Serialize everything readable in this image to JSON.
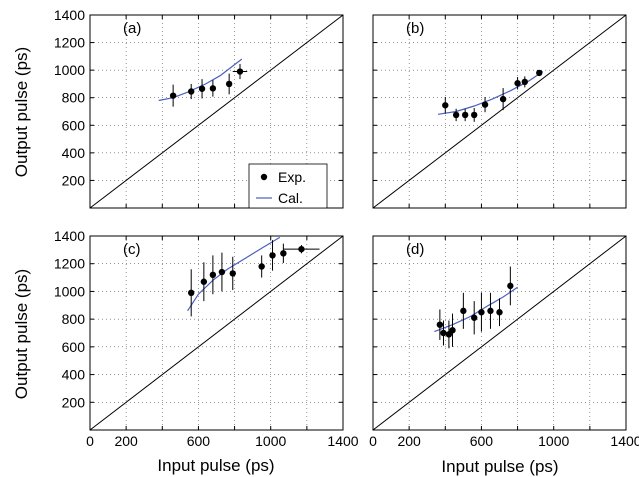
{
  "figure": {
    "ylabel": "Output pulse (ps)",
    "xlabel": "Input pulse (ps)"
  },
  "legend": {
    "exp_label": "Exp.",
    "cal_label": "Cal."
  },
  "colors": {
    "experiment": "#000000",
    "calculation": "#4a5fc1",
    "reference_line": "#000000",
    "grid": "#555555"
  },
  "chart_data": [
    {
      "type": "scatter",
      "panel_label": "(a)",
      "xlim": [
        0,
        1400
      ],
      "ylim": [
        0,
        1400
      ],
      "xticks": [
        0,
        200,
        600,
        1000,
        1400
      ],
      "yticks": [
        200,
        400,
        600,
        800,
        1000,
        1200,
        1400
      ],
      "grid": true,
      "legend_position": "lower-right",
      "reference_line": "y = x",
      "series": [
        {
          "name": "Exp.",
          "points": [
            {
              "x": 460,
              "y": 815,
              "err": 80
            },
            {
              "x": 560,
              "y": 845,
              "err": 55
            },
            {
              "x": 620,
              "y": 865,
              "err": 70
            },
            {
              "x": 680,
              "y": 868,
              "err": 60
            },
            {
              "x": 770,
              "y": 900,
              "err": 75
            },
            {
              "x": 830,
              "y": 990,
              "err": 55,
              "xerr": 40
            }
          ]
        },
        {
          "name": "Cal.",
          "line": [
            {
              "x": 380,
              "y": 780
            },
            {
              "x": 460,
              "y": 800
            },
            {
              "x": 540,
              "y": 840
            },
            {
              "x": 640,
              "y": 900
            },
            {
              "x": 720,
              "y": 960
            },
            {
              "x": 800,
              "y": 1040
            },
            {
              "x": 840,
              "y": 1080
            }
          ]
        }
      ]
    },
    {
      "type": "scatter",
      "panel_label": "(b)",
      "xlim": [
        0,
        1400
      ],
      "ylim": [
        0,
        1400
      ],
      "xticks": [
        0,
        200,
        600,
        1000,
        1400
      ],
      "yticks": [
        200,
        400,
        600,
        800,
        1000,
        1200,
        1400
      ],
      "grid": true,
      "reference_line": "y = x",
      "series": [
        {
          "name": "Exp.",
          "points": [
            {
              "x": 400,
              "y": 745,
              "err": 60
            },
            {
              "x": 460,
              "y": 675,
              "err": 45
            },
            {
              "x": 510,
              "y": 675,
              "err": 45
            },
            {
              "x": 560,
              "y": 675,
              "err": 50
            },
            {
              "x": 620,
              "y": 750,
              "err": 55
            },
            {
              "x": 720,
              "y": 790,
              "err": 80
            },
            {
              "x": 800,
              "y": 905,
              "err": 45
            },
            {
              "x": 840,
              "y": 915,
              "err": 40
            },
            {
              "x": 920,
              "y": 980,
              "err": 20
            }
          ]
        },
        {
          "name": "Cal.",
          "line": [
            {
              "x": 360,
              "y": 680
            },
            {
              "x": 460,
              "y": 700
            },
            {
              "x": 560,
              "y": 740
            },
            {
              "x": 660,
              "y": 790
            },
            {
              "x": 760,
              "y": 850
            },
            {
              "x": 860,
              "y": 920
            },
            {
              "x": 940,
              "y": 990
            }
          ]
        }
      ]
    },
    {
      "type": "scatter",
      "panel_label": "(c)",
      "xlim": [
        0,
        1400
      ],
      "ylim": [
        0,
        1400
      ],
      "xticks": [
        0,
        200,
        600,
        1000,
        1400
      ],
      "yticks": [
        200,
        400,
        600,
        800,
        1000,
        1200,
        1400
      ],
      "grid": true,
      "reference_line": "y = x",
      "series": [
        {
          "name": "Exp.",
          "points": [
            {
              "x": 560,
              "y": 990,
              "err": 170
            },
            {
              "x": 630,
              "y": 1070,
              "err": 140
            },
            {
              "x": 680,
              "y": 1120,
              "err": 140
            },
            {
              "x": 730,
              "y": 1140,
              "err": 140
            },
            {
              "x": 790,
              "y": 1130,
              "err": 120
            },
            {
              "x": 950,
              "y": 1180,
              "err": 80
            },
            {
              "x": 1010,
              "y": 1260,
              "err": 110
            },
            {
              "x": 1070,
              "y": 1275,
              "err": 70
            },
            {
              "x": 1170,
              "y": 1305,
              "err": 30,
              "xerr": 100
            }
          ]
        },
        {
          "name": "Cal.",
          "line": [
            {
              "x": 540,
              "y": 860
            },
            {
              "x": 600,
              "y": 980
            },
            {
              "x": 680,
              "y": 1080
            },
            {
              "x": 760,
              "y": 1160
            },
            {
              "x": 860,
              "y": 1240
            },
            {
              "x": 960,
              "y": 1320
            },
            {
              "x": 1050,
              "y": 1390
            }
          ]
        }
      ]
    },
    {
      "type": "scatter",
      "panel_label": "(d)",
      "xlim": [
        0,
        1400
      ],
      "ylim": [
        0,
        1400
      ],
      "xticks": [
        0,
        200,
        600,
        1000,
        1400
      ],
      "yticks": [
        200,
        400,
        600,
        800,
        1000,
        1200,
        1400
      ],
      "grid": true,
      "reference_line": "y = x",
      "series": [
        {
          "name": "Exp.",
          "points": [
            {
              "x": 370,
              "y": 760,
              "err": 110
            },
            {
              "x": 390,
              "y": 700,
              "err": 90
            },
            {
              "x": 420,
              "y": 690,
              "err": 100
            },
            {
              "x": 440,
              "y": 720,
              "err": 120
            },
            {
              "x": 500,
              "y": 860,
              "err": 130
            },
            {
              "x": 560,
              "y": 810,
              "err": 120
            },
            {
              "x": 600,
              "y": 850,
              "err": 140
            },
            {
              "x": 650,
              "y": 860,
              "err": 130
            },
            {
              "x": 700,
              "y": 850,
              "err": 100
            },
            {
              "x": 760,
              "y": 1040,
              "err": 140
            }
          ]
        },
        {
          "name": "Cal.",
          "line": [
            {
              "x": 340,
              "y": 710
            },
            {
              "x": 440,
              "y": 760
            },
            {
              "x": 540,
              "y": 820
            },
            {
              "x": 640,
              "y": 900
            },
            {
              "x": 720,
              "y": 960
            },
            {
              "x": 800,
              "y": 1030
            }
          ]
        }
      ]
    }
  ]
}
